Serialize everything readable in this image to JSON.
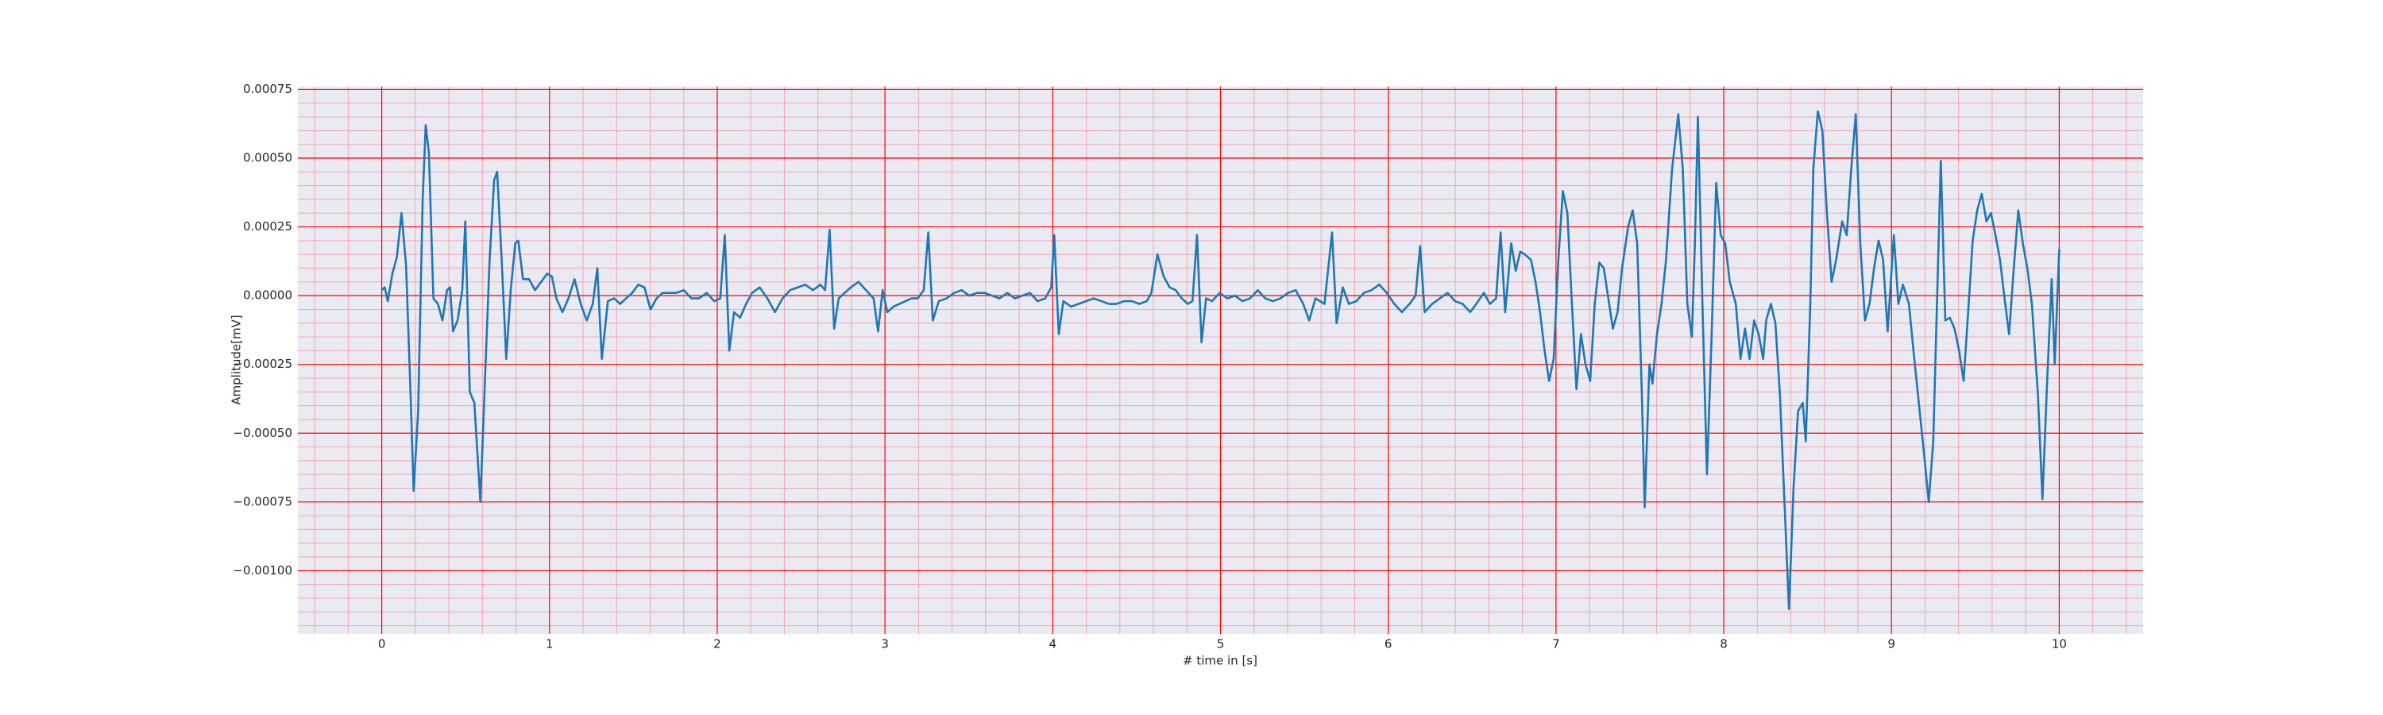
{
  "chart_data": {
    "type": "line",
    "x_label": "# time in [s]",
    "y_label": "Amplitude[mV]",
    "color": "#1f77b4",
    "grid": true,
    "grid_color": "#ff0000",
    "minor_grid_color": "#f4a6b4",
    "minor_divisions": 5,
    "background": "#eaeaf2",
    "xlim": [
      -0.5,
      10.5
    ],
    "ylim": [
      -0.00123,
      0.00076
    ],
    "xticks": [
      0,
      1,
      2,
      3,
      4,
      5,
      6,
      7,
      8,
      9,
      10
    ],
    "yticks": [
      {
        "value": 0.00075,
        "label": "0.00075"
      },
      {
        "value": 0.0005,
        "label": "0.00050"
      },
      {
        "value": 0.00025,
        "label": "0.00025"
      },
      {
        "value": 0,
        "label": "0.00000"
      },
      {
        "value": -0.00025,
        "label": "−0.00025"
      },
      {
        "value": -0.0005,
        "label": "−0.00050"
      },
      {
        "value": -0.00075,
        "label": "−0.00075"
      },
      {
        "value": -0.001,
        "label": "−0.00100"
      }
    ],
    "x": [
      0.0,
      0.018,
      0.036,
      0.063,
      0.09,
      0.118,
      0.145,
      0.172,
      0.19,
      0.217,
      0.244,
      0.262,
      0.281,
      0.308,
      0.335,
      0.362,
      0.389,
      0.407,
      0.425,
      0.452,
      0.48,
      0.498,
      0.525,
      0.552,
      0.588,
      0.615,
      0.643,
      0.67,
      0.688,
      0.715,
      0.742,
      0.769,
      0.796,
      0.814,
      0.842,
      0.878,
      0.914,
      0.95,
      0.986,
      1.014,
      1.041,
      1.077,
      1.113,
      1.149,
      1.186,
      1.222,
      1.258,
      1.285,
      1.312,
      1.348,
      1.385,
      1.421,
      1.457,
      1.493,
      1.529,
      1.566,
      1.602,
      1.638,
      1.674,
      1.756,
      1.801,
      1.846,
      1.891,
      1.937,
      1.982,
      2.018,
      2.045,
      2.072,
      2.1,
      2.136,
      2.172,
      2.208,
      2.253,
      2.299,
      2.344,
      2.389,
      2.434,
      2.48,
      2.525,
      2.57,
      2.615,
      2.643,
      2.67,
      2.697,
      2.724,
      2.76,
      2.796,
      2.842,
      2.887,
      2.932,
      2.959,
      2.986,
      3.014,
      3.05,
      3.086,
      3.122,
      3.158,
      3.195,
      3.231,
      3.258,
      3.285,
      3.321,
      3.367,
      3.412,
      3.457,
      3.502,
      3.548,
      3.593,
      3.638,
      3.683,
      3.729,
      3.774,
      3.819,
      3.864,
      3.91,
      3.955,
      3.991,
      4.009,
      4.036,
      4.063,
      4.109,
      4.154,
      4.199,
      4.244,
      4.29,
      4.335,
      4.38,
      4.425,
      4.471,
      4.516,
      4.561,
      4.588,
      4.624,
      4.661,
      4.697,
      4.733,
      4.769,
      4.805,
      4.833,
      4.86,
      4.887,
      4.914,
      4.95,
      4.995,
      5.041,
      5.086,
      5.131,
      5.176,
      5.222,
      5.267,
      5.312,
      5.357,
      5.403,
      5.448,
      5.493,
      5.529,
      5.566,
      5.62,
      5.665,
      5.692,
      5.729,
      5.765,
      5.81,
      5.855,
      5.9,
      5.946,
      5.991,
      6.036,
      6.081,
      6.127,
      6.163,
      6.19,
      6.217,
      6.262,
      6.308,
      6.353,
      6.398,
      6.443,
      6.489,
      6.525,
      6.57,
      6.606,
      6.643,
      6.67,
      6.697,
      6.733,
      6.76,
      6.787,
      6.814,
      6.851,
      6.878,
      6.905,
      6.932,
      6.959,
      6.986,
      7.014,
      7.041,
      7.068,
      7.095,
      7.122,
      7.149,
      7.176,
      7.204,
      7.231,
      7.258,
      7.285,
      7.312,
      7.339,
      7.367,
      7.394,
      7.43,
      7.457,
      7.484,
      7.511,
      7.529,
      7.557,
      7.575,
      7.602,
      7.629,
      7.656,
      7.692,
      7.729,
      7.756,
      7.783,
      7.81,
      7.828,
      7.846,
      7.873,
      7.9,
      7.928,
      7.955,
      7.982,
      8.009,
      8.036,
      8.072,
      8.1,
      8.127,
      8.154,
      8.181,
      8.208,
      8.235,
      8.253,
      8.281,
      8.308,
      8.335,
      8.362,
      8.389,
      8.416,
      8.443,
      8.471,
      8.489,
      8.516,
      8.534,
      8.561,
      8.588,
      8.615,
      8.643,
      8.67,
      8.706,
      8.733,
      8.76,
      8.787,
      8.814,
      8.842,
      8.869,
      8.896,
      8.923,
      8.95,
      8.977,
      9.014,
      9.041,
      9.068,
      9.104,
      9.131,
      9.158,
      9.195,
      9.222,
      9.249,
      9.276,
      9.294,
      9.321,
      9.348,
      9.376,
      9.403,
      9.43,
      9.457,
      9.484,
      9.511,
      9.538,
      9.566,
      9.593,
      9.62,
      9.647,
      9.674,
      9.701,
      9.729,
      9.756,
      9.783,
      9.81,
      9.837,
      9.873,
      9.9,
      9.928,
      9.955,
      9.973,
      10.0
    ],
    "values": [
      2e-05,
      3e-05,
      -2e-05,
      8e-05,
      0.00014,
      0.0003,
      0.00011,
      -0.00036,
      -0.00071,
      -0.00042,
      0.00035,
      0.00062,
      0.00052,
      -1e-05,
      -3e-05,
      -9e-05,
      2e-05,
      3e-05,
      -0.00013,
      -9e-05,
      2e-05,
      0.00027,
      -0.00035,
      -0.00039,
      -0.00075,
      -0.00031,
      0.00013,
      0.00042,
      0.00045,
      0.00013,
      -0.00023,
      2e-05,
      0.00019,
      0.0002,
      6e-05,
      6e-05,
      2e-05,
      5e-05,
      8e-05,
      7e-05,
      -1e-05,
      -6e-05,
      -1e-05,
      6e-05,
      -3e-05,
      -9e-05,
      -3e-05,
      0.0001,
      -0.00023,
      -2e-05,
      -1e-05,
      -3e-05,
      -1e-05,
      1e-05,
      4e-05,
      3e-05,
      -5e-05,
      -1e-05,
      1e-05,
      1e-05,
      2e-05,
      -1e-05,
      -1e-05,
      1e-05,
      -2e-05,
      -1e-05,
      0.00022,
      -0.0002,
      -6e-05,
      -8e-05,
      -3e-05,
      1e-05,
      3e-05,
      -1e-05,
      -6e-05,
      -1e-05,
      2e-05,
      3e-05,
      4e-05,
      2e-05,
      4e-05,
      2e-05,
      0.00024,
      -0.00012,
      -1e-05,
      1e-05,
      3e-05,
      5e-05,
      2e-05,
      -1e-05,
      -0.00013,
      2e-05,
      -6e-05,
      -4e-05,
      -3e-05,
      -2e-05,
      -1e-05,
      -1e-05,
      2e-05,
      0.00023,
      -9e-05,
      -2e-05,
      -1e-05,
      1e-05,
      2e-05,
      0,
      1e-05,
      1e-05,
      0,
      -1e-05,
      1e-05,
      -1e-05,
      0,
      1e-05,
      -2e-05,
      -1e-05,
      3e-05,
      0.00022,
      -0.00014,
      -2e-05,
      -4e-05,
      -3e-05,
      -2e-05,
      -1e-05,
      -2e-05,
      -3e-05,
      -3e-05,
      -2e-05,
      -2e-05,
      -3e-05,
      -2e-05,
      1e-05,
      0.00015,
      7e-05,
      3e-05,
      2e-05,
      -1e-05,
      -3e-05,
      -2e-05,
      0.00022,
      -0.00017,
      -1e-05,
      -2e-05,
      1e-05,
      -1e-05,
      0,
      -2e-05,
      -1e-05,
      2e-05,
      -1e-05,
      -2e-05,
      -1e-05,
      1e-05,
      2e-05,
      -3e-05,
      -9e-05,
      -1e-05,
      -3e-05,
      0.00023,
      -0.0001,
      3e-05,
      -3e-05,
      -2e-05,
      1e-05,
      2e-05,
      4e-05,
      1e-05,
      -3e-05,
      -6e-05,
      -3e-05,
      0,
      0.00018,
      -6e-05,
      -3e-05,
      -1e-05,
      1e-05,
      -2e-05,
      -3e-05,
      -6e-05,
      -3e-05,
      1e-05,
      -3e-05,
      -1e-05,
      0.00023,
      -6e-05,
      0.00019,
      9e-05,
      0.00016,
      0.00015,
      0.00013,
      5e-05,
      -6e-05,
      -0.0002,
      -0.00031,
      -0.00023,
      0.00013,
      0.00038,
      0.0003,
      -3e-05,
      -0.00034,
      -0.00014,
      -0.00025,
      -0.00031,
      -3e-05,
      0.00012,
      0.0001,
      -1e-05,
      -0.00012,
      -6e-05,
      0.0001,
      0.00025,
      0.00031,
      0.00019,
      -0.00034,
      -0.00077,
      -0.00025,
      -0.00032,
      -0.00014,
      -3e-05,
      0.00013,
      0.00046,
      0.00066,
      0.00046,
      -3e-05,
      -0.00015,
      0.00019,
      0.00065,
      -3e-05,
      -0.00065,
      -0.00014,
      0.00041,
      0.00022,
      0.00019,
      5e-05,
      -3e-05,
      -0.00023,
      -0.00012,
      -0.00023,
      -9e-05,
      -0.00014,
      -0.00023,
      -9e-05,
      -3e-05,
      -0.0001,
      -0.00036,
      -0.00075,
      -0.00114,
      -0.0007,
      -0.00042,
      -0.00039,
      -0.00053,
      -3e-05,
      0.00046,
      0.00067,
      0.0006,
      0.0003,
      5e-05,
      0.00013,
      0.00027,
      0.00022,
      0.00046,
      0.00066,
      0.00019,
      -9e-05,
      -3e-05,
      0.0001,
      0.0002,
      0.00013,
      -0.00013,
      0.00022,
      -3e-05,
      4e-05,
      -3e-05,
      -0.0002,
      -0.00036,
      -0.00058,
      -0.00075,
      -0.00053,
      8e-05,
      0.00049,
      -9e-05,
      -8e-05,
      -0.00012,
      -0.0002,
      -0.00031,
      -6e-05,
      0.0002,
      0.00031,
      0.00037,
      0.00027,
      0.0003,
      0.00022,
      0.00013,
      -1e-05,
      -0.00014,
      0.0001,
      0.00031,
      0.00019,
      0.0001,
      -3e-05,
      -0.00036,
      -0.00074,
      -0.00031,
      6e-05,
      -0.00025,
      0.00017
    ]
  }
}
